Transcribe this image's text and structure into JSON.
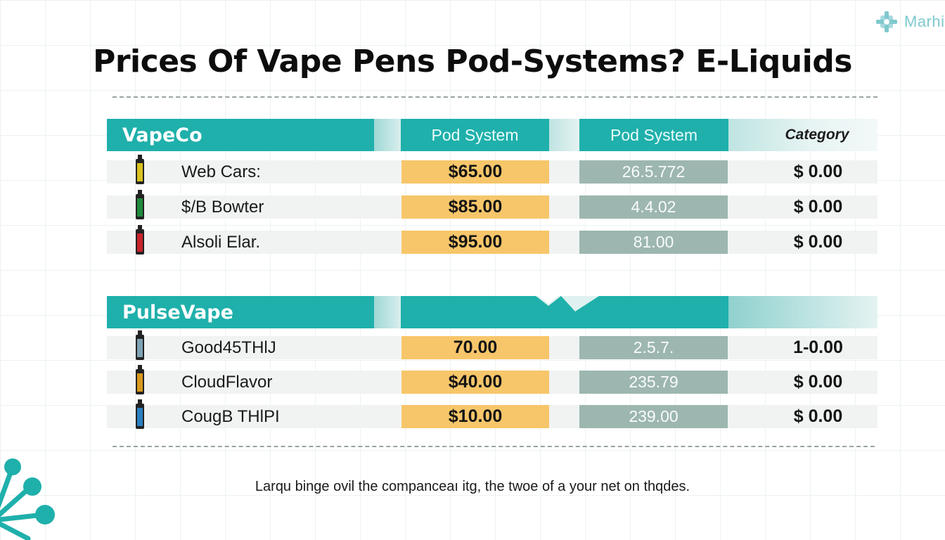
{
  "logo": {
    "text": "Marhi"
  },
  "title": "Prices Of Vape Pens Pod-Systems? E-Liquids",
  "sections": [
    {
      "brand": "VapeCo",
      "col1": "Pod System",
      "col2": "Pod System",
      "col3": "Category",
      "rows": [
        {
          "name": "Web Cars:",
          "price": "$65.00",
          "num": "26.5.772",
          "cat": "$ 0.00",
          "icon_color": "#d9c21f"
        },
        {
          "name": "$/B Bowter",
          "price": "$85.00",
          "num": "4.4.02",
          "cat": "$ 0.00",
          "icon_color": "#1f8a3c"
        },
        {
          "name": "Alsoli Elar.",
          "price": "$95.00",
          "num": "81.00",
          "cat": "$ 0.00",
          "icon_color": "#c8232b"
        }
      ]
    },
    {
      "brand": "PulseVape",
      "rows": [
        {
          "name": "Good45THlJ",
          "price": "70.00",
          "num": "2.5.7.",
          "cat": "1-0.00",
          "icon_color": "#7fa3b5"
        },
        {
          "name": "CloudFlavor",
          "price": "$40.00",
          "num": "235.79",
          "cat": "$ 0.00",
          "icon_color": "#d89a1e"
        },
        {
          "name": "CougB THlPI",
          "price": "$10.00",
          "num": "239.00",
          "cat": "$ 0.00",
          "icon_color": "#2b7fc0"
        }
      ]
    }
  ],
  "footer": "Larqu binge ovil the companceaı itg, the twoe of a your net on thqdes.",
  "colors": {
    "teal": "#1fb0ab",
    "price": "#f7c66a",
    "num": "#9db7b0",
    "logo": "#7fc9cf"
  }
}
